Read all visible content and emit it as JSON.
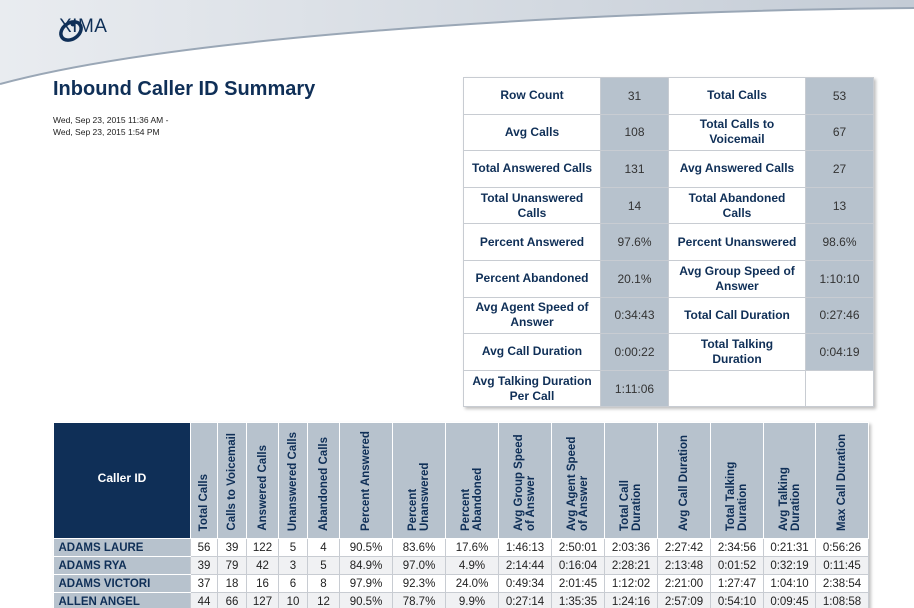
{
  "brand": {
    "name": "XIMA"
  },
  "report": {
    "title": "Inbound Caller ID Summary",
    "date_start": "Wed, Sep 23, 2015 11:36 AM -",
    "date_end": "Wed, Sep 23, 2015 1:54 PM"
  },
  "summary": {
    "rows": [
      [
        {
          "label": "Row Count",
          "value": "31"
        },
        {
          "label": "Total Calls",
          "value": "53"
        }
      ],
      [
        {
          "label": "Avg Calls",
          "value": "108"
        },
        {
          "label": "Total Calls to Voicemail",
          "value": "67"
        }
      ],
      [
        {
          "label": "Total Answered Calls",
          "value": "131"
        },
        {
          "label": "Avg Answered Calls",
          "value": "27"
        }
      ],
      [
        {
          "label": "Total Unanswered Calls",
          "value": "14"
        },
        {
          "label": "Total Abandoned Calls",
          "value": "13"
        }
      ],
      [
        {
          "label": "Percent Answered",
          "value": "97.6%"
        },
        {
          "label": "Percent Unanswered",
          "value": "98.6%"
        }
      ],
      [
        {
          "label": "Percent Abandoned",
          "value": "20.1%"
        },
        {
          "label": "Avg Group Speed of Answer",
          "value": "1:10:10"
        }
      ],
      [
        {
          "label": "Avg Agent Speed of Answer",
          "value": "0:34:43"
        },
        {
          "label": "Total Call Duration",
          "value": "0:27:46"
        }
      ],
      [
        {
          "label": "Avg Call Duration",
          "value": "0:00:22"
        },
        {
          "label": "Total Talking Duration",
          "value": "0:04:19"
        }
      ],
      [
        {
          "label": "Avg Talking Duration Per Call",
          "value": "1:11:06"
        },
        {
          "label": "",
          "value": ""
        }
      ]
    ]
  },
  "table": {
    "caller_header": "Caller ID",
    "columns": [
      "Total Calls",
      "Calls to Voicemail",
      "Answered Calls",
      "Unanswered Calls",
      "Abandoned Calls",
      "Percent Answered",
      "Percent Unanswered",
      "Percent Abandoned",
      "Avg Group Speed of Answer",
      "Avg Agent Speed of Answer",
      "Total Call Duration",
      "Avg Call Duration",
      "Total Talking Duration",
      "Avg Talking Duration",
      "Max Call Duration"
    ],
    "rows": [
      {
        "name": "ADAMS LAURE",
        "cells": [
          "56",
          "39",
          "122",
          "5",
          "4",
          "90.5%",
          "83.6%",
          "17.6%",
          "1:46:13",
          "2:50:01",
          "2:03:36",
          "2:27:42",
          "2:34:56",
          "0:21:31",
          "0:56:26"
        ]
      },
      {
        "name": "ADAMS RYA",
        "cells": [
          "39",
          "79",
          "42",
          "3",
          "5",
          "84.9%",
          "97.0%",
          "4.9%",
          "2:14:44",
          "0:16:04",
          "2:28:21",
          "2:13:48",
          "0:01:52",
          "0:32:19",
          "0:11:45"
        ]
      },
      {
        "name": "ADAMS VICTORI",
        "cells": [
          "37",
          "18",
          "16",
          "6",
          "8",
          "97.9%",
          "92.3%",
          "24.0%",
          "0:49:34",
          "2:01:45",
          "1:12:02",
          "2:21:00",
          "1:27:47",
          "1:04:10",
          "2:38:54"
        ]
      },
      {
        "name": "ALLEN ANGEL",
        "cells": [
          "44",
          "66",
          "127",
          "10",
          "12",
          "90.5%",
          "78.7%",
          "9.9%",
          "0:27:14",
          "1:35:35",
          "1:24:16",
          "2:57:09",
          "0:54:10",
          "0:09:45",
          "1:08:58"
        ]
      }
    ]
  },
  "colors": {
    "navy": "#0f2f57",
    "slate": "#b7c2cd"
  }
}
